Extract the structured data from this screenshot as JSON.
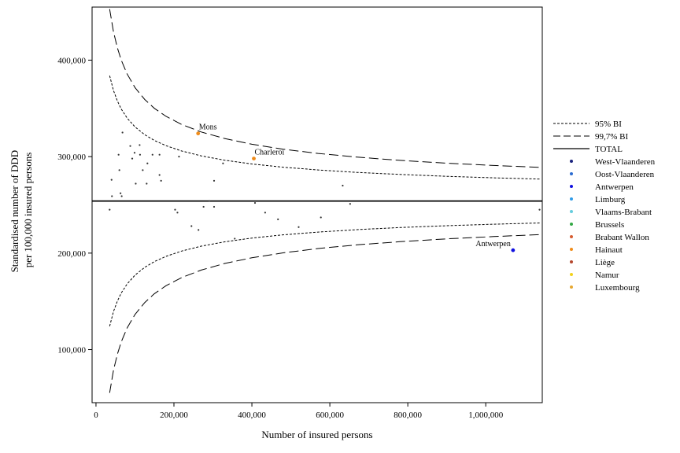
{
  "chart_data": {
    "type": "scatter",
    "title": "",
    "xlabel": "Number of insured persons",
    "ylabel_lines": [
      "Standardised number of DDD",
      "per 100,000 insured persons"
    ],
    "xlim": [
      -10000,
      1145000
    ],
    "ylim": [
      45000,
      455000
    ],
    "x_ticks": [
      0,
      200000,
      400000,
      600000,
      800000,
      1000000
    ],
    "x_tick_labels": [
      "0",
      "200,000",
      "400,000",
      "600,000",
      "800,000",
      "1,000,000"
    ],
    "y_ticks": [
      100000,
      200000,
      300000,
      400000
    ],
    "y_tick_labels": [
      "100,000",
      "200,000",
      "300,000",
      "400,000"
    ],
    "total": 254000,
    "limit_x": [
      35000,
      45000,
      55000,
      65000,
      80000,
      100000,
      125000,
      150000,
      180000,
      220000,
      270000,
      330000,
      400000,
      480000,
      570000,
      670000,
      780000,
      900000,
      1020000,
      1140000
    ],
    "limits": [
      {
        "name": "95% BI",
        "style": "dotted",
        "k95": 24300000
      },
      {
        "name": "99,7% BI",
        "style": "dashed",
        "k997": 37200000
      }
    ],
    "legend": {
      "position": "right",
      "line_entries": [
        {
          "label": "95% BI",
          "style": "dotted"
        },
        {
          "label": "99,7% BI",
          "style": "dashed"
        },
        {
          "label": "TOTAL",
          "style": "solid"
        }
      ],
      "point_entries": [
        {
          "label": "West-Vlaanderen",
          "color": "#1a237e"
        },
        {
          "label": "Oost-Vlaanderen",
          "color": "#2b6cd1"
        },
        {
          "label": "Antwerpen",
          "color": "#1010e0"
        },
        {
          "label": "Limburg",
          "color": "#2f9be8"
        },
        {
          "label": "Vlaams-Brabant",
          "color": "#66ccdd"
        },
        {
          "label": "Brussels",
          "color": "#33a845"
        },
        {
          "label": "Brabant Wallon",
          "color": "#d65c30"
        },
        {
          "label": "Hainaut",
          "color": "#f08c1a"
        },
        {
          "label": "Liège",
          "color": "#b5472e"
        },
        {
          "label": "Namur",
          "color": "#f2d21b"
        },
        {
          "label": "Luxembourg",
          "color": "#e6a832"
        }
      ]
    },
    "highlighted": [
      {
        "label": "Mons",
        "x": 262000,
        "y": 324000,
        "color": "#f08c1a"
      },
      {
        "label": "Charleroi",
        "x": 405000,
        "y": 298000,
        "color": "#f08c1a"
      },
      {
        "label": "Antwerpen",
        "x": 1070000,
        "y": 203000,
        "color": "#1010e0"
      }
    ],
    "points": [
      {
        "x": 68000,
        "y": 325000
      },
      {
        "x": 88000,
        "y": 311000
      },
      {
        "x": 112000,
        "y": 312000
      },
      {
        "x": 58000,
        "y": 302000
      },
      {
        "x": 99000,
        "y": 304000
      },
      {
        "x": 113000,
        "y": 302000
      },
      {
        "x": 93000,
        "y": 298000
      },
      {
        "x": 145000,
        "y": 302000
      },
      {
        "x": 163000,
        "y": 302000
      },
      {
        "x": 213000,
        "y": 300000
      },
      {
        "x": 132000,
        "y": 293000
      },
      {
        "x": 326000,
        "y": 293000
      },
      {
        "x": 60000,
        "y": 286000
      },
      {
        "x": 120000,
        "y": 286000
      },
      {
        "x": 163000,
        "y": 281000
      },
      {
        "x": 40000,
        "y": 276000
      },
      {
        "x": 102000,
        "y": 272000
      },
      {
        "x": 130000,
        "y": 272000
      },
      {
        "x": 167000,
        "y": 275000
      },
      {
        "x": 303000,
        "y": 275000
      },
      {
        "x": 633000,
        "y": 270000
      },
      {
        "x": 63000,
        "y": 262000
      },
      {
        "x": 41000,
        "y": 259000
      },
      {
        "x": 66000,
        "y": 259000
      },
      {
        "x": 291000,
        "y": 254000
      },
      {
        "x": 408000,
        "y": 252000
      },
      {
        "x": 652000,
        "y": 251000
      },
      {
        "x": 276000,
        "y": 248000
      },
      {
        "x": 303000,
        "y": 248000
      },
      {
        "x": 35000,
        "y": 245000
      },
      {
        "x": 203000,
        "y": 245000
      },
      {
        "x": 209000,
        "y": 242000
      },
      {
        "x": 434000,
        "y": 242000
      },
      {
        "x": 1138000,
        "y": 245000
      },
      {
        "x": 467000,
        "y": 235000
      },
      {
        "x": 577000,
        "y": 237000
      },
      {
        "x": 245000,
        "y": 228000
      },
      {
        "x": 520000,
        "y": 227000
      },
      {
        "x": 263000,
        "y": 224000
      },
      {
        "x": 356000,
        "y": 215000
      }
    ]
  }
}
